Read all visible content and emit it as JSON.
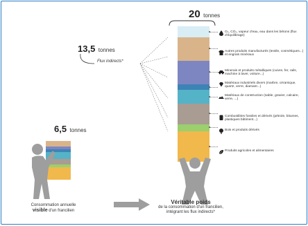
{
  "totals": {
    "visible_value": "6,5",
    "visible_unit": "tonnes",
    "indirect_value": "13,5",
    "indirect_unit": "tonnes",
    "indirect_label": "Flux indirects*",
    "real_value": "20",
    "real_unit": "tonnes"
  },
  "categories": [
    {
      "label": "O₂, CO₂, vapeur d'eau, eau dans les bétons (flux d'équilibrage)",
      "icon": "water-drop-icon",
      "color": "#d9edf5"
    },
    {
      "label": "Autres produits manufacturés (textile, cosmétiques...) et engrais minéraux",
      "icon": "t-shirt-icon",
      "color": "#d9b48b"
    },
    {
      "label": "Minerais et produits métalliques (cuivre, fer, rails, machine à laver, voiture...)",
      "icon": "car-icon",
      "color": "#7e86c2"
    },
    {
      "label": "Matériaux industriels divers (marbre, céramique, quartz, verre, diamant...)",
      "icon": "diamond-icon",
      "color": "#3e83b6"
    },
    {
      "label": "Matériaux de construction (sable, gravier, calcaire, verre, ...)",
      "icon": "rubble-icon",
      "color": "#55b3c7"
    },
    {
      "label": "Combustibles fossiles et dérivés (pétrole, bitumes, plastiques bâtiment...)",
      "icon": "barrel-icon",
      "color": "#a99c93"
    },
    {
      "label": "Bois et produits dérivés",
      "icon": "tree-icon",
      "color": "#9ccf6e"
    },
    {
      "label": "Produits agricoles et alimentaires",
      "icon": "leaf-icon",
      "color": "#f1b84c"
    }
  ],
  "captions": {
    "left_line1": "Consommation annuelle",
    "left_bold": "visible",
    "left_rest": " d'un francilien",
    "right_title": "Véritable poids",
    "right_line2": "de la consommation d'un francilien,",
    "right_line3": "intégrant les flux indirects*"
  }
}
